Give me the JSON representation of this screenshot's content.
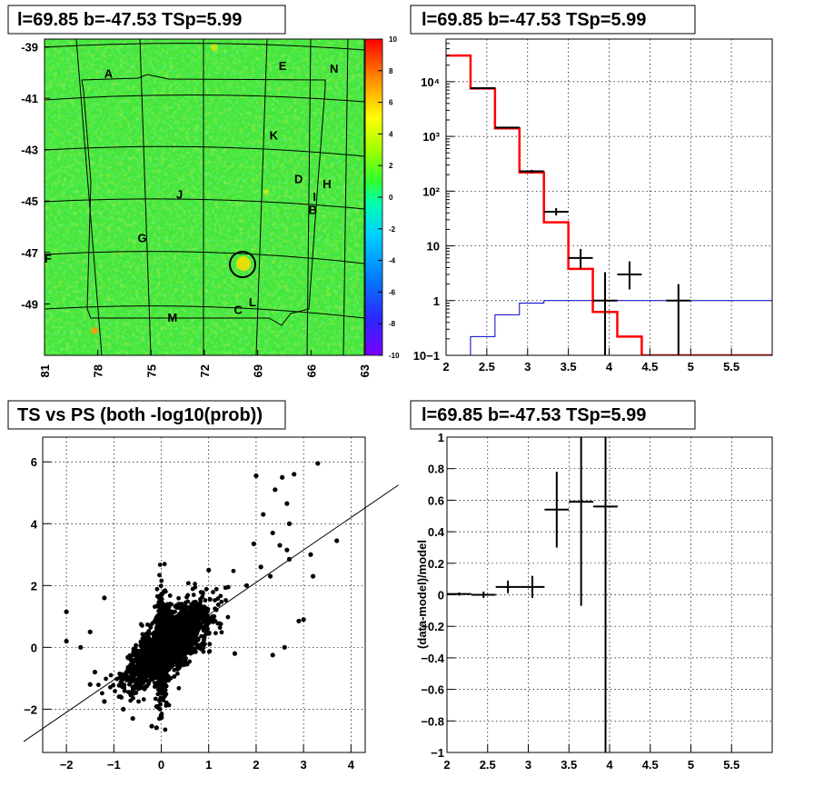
{
  "titles": {
    "map": "l=69.85 b=-47.53 TSp=5.99",
    "spectrum": "l=69.85 b=-47.53 TSp=5.99",
    "scatter": "TS vs PS (both -log10(prob))",
    "residual": "l=69.85 b=-47.53 TSp=5.99"
  },
  "chart_data": [
    {
      "type": "heatmap",
      "title": "l=69.85 b=-47.53 TSp=5.99",
      "x_ticks": [
        "81",
        "78",
        "75",
        "72",
        "69",
        "66",
        "63"
      ],
      "y_ticks": [
        "-39",
        "-41",
        "-43",
        "-45",
        "-47",
        "-49"
      ],
      "xlim": [
        81,
        63
      ],
      "ylim": [
        -51,
        -38.7
      ],
      "colorbar": {
        "min": -10,
        "max": 10,
        "ticks": [
          "10",
          "8",
          "6",
          "4",
          "2",
          "0",
          "-2",
          "-4",
          "-6",
          "-8",
          "-10"
        ]
      },
      "base_level": 0,
      "labels": [
        {
          "text": "A",
          "l": 77.4,
          "b": -40.2
        },
        {
          "text": "E",
          "l": 67.6,
          "b": -39.9
        },
        {
          "text": "N",
          "l": 64.7,
          "b": -40.0
        },
        {
          "text": "K",
          "l": 68.1,
          "b": -42.6
        },
        {
          "text": "D",
          "l": 66.7,
          "b": -44.3
        },
        {
          "text": "H",
          "l": 65.1,
          "b": -44.5
        },
        {
          "text": "J",
          "l": 73.4,
          "b": -44.9
        },
        {
          "text": "I",
          "l": 65.8,
          "b": -45.0
        },
        {
          "text": "B",
          "l": 65.9,
          "b": -45.5
        },
        {
          "text": "G",
          "l": 75.5,
          "b": -46.6
        },
        {
          "text": "F",
          "l": 80.8,
          "b": -47.4
        },
        {
          "text": "L",
          "l": 69.3,
          "b": -49.1
        },
        {
          "text": "C",
          "l": 70.1,
          "b": -49.4
        },
        {
          "text": "M",
          "l": 73.8,
          "b": -49.7
        }
      ],
      "source_circle": {
        "l": 69.85,
        "b": -47.2
      }
    },
    {
      "type": "line",
      "title": "l=69.85 b=-47.53 TSp=5.99",
      "yscale": "log",
      "xlim": [
        2,
        6
      ],
      "ylim": [
        0.1,
        60000
      ],
      "x_ticks": [
        "2",
        "2.5",
        "3",
        "3.5",
        "4",
        "4.5",
        "5",
        "5.5"
      ],
      "y_ticks": [
        "10−1",
        "1",
        "10",
        "10²",
        "10³",
        "10⁴"
      ],
      "model_total": {
        "color": "#ff0000",
        "edges": [
          2,
          2.3,
          2.6,
          2.9,
          3.2,
          3.5,
          3.8,
          4.1,
          4.4,
          6
        ],
        "values": [
          30000,
          7500,
          1400,
          220,
          27,
          3.8,
          0.62,
          0.22,
          0.1
        ]
      },
      "model_background": {
        "color": "#0000cc",
        "edges": [
          2,
          2.3,
          2.6,
          2.9,
          3.2,
          3.5,
          3.8,
          4.1,
          4.4,
          6
        ],
        "values": [
          0.05,
          0.22,
          0.55,
          0.9,
          1.0,
          1.0,
          1.0,
          1.0,
          1.0
        ]
      },
      "data_points": [
        {
          "x": 2.45,
          "y": 7600,
          "xerr": 0.15,
          "ylo": 7400,
          "yhi": 7800
        },
        {
          "x": 2.75,
          "y": 1450,
          "xerr": 0.15,
          "ylo": 1400,
          "yhi": 1500
        },
        {
          "x": 3.05,
          "y": 230,
          "xerr": 0.15,
          "ylo": 215,
          "yhi": 245
        },
        {
          "x": 3.35,
          "y": 42,
          "xerr": 0.15,
          "ylo": 36,
          "yhi": 49
        },
        {
          "x": 3.65,
          "y": 6,
          "xerr": 0.15,
          "ylo": 3.8,
          "yhi": 8.8
        },
        {
          "x": 3.95,
          "y": 1,
          "xerr": 0.15,
          "ylo": 0.1,
          "yhi": 3.3
        },
        {
          "x": 4.25,
          "y": 3,
          "xerr": 0.15,
          "ylo": 1.6,
          "yhi": 5.2
        },
        {
          "x": 4.85,
          "y": 1,
          "xerr": 0.15,
          "ylo": 0.1,
          "yhi": 2.0
        }
      ]
    },
    {
      "type": "scatter",
      "title": "TS vs PS (both -log10(prob))",
      "xlim": [
        -2.5,
        4.3
      ],
      "ylim": [
        -3.4,
        6.8
      ],
      "x_ticks": [
        -2,
        -1,
        0,
        1,
        2,
        3,
        4
      ],
      "y_ticks": [
        -2,
        0,
        2,
        4,
        6
      ],
      "fit_line": {
        "slope": 1.05,
        "intercept": 0.0
      },
      "outliers": [
        [
          3.3,
          5.95
        ],
        [
          2.8,
          5.6
        ],
        [
          2.55,
          5.5
        ],
        [
          2.0,
          5.55
        ],
        [
          2.4,
          5.1
        ],
        [
          2.65,
          4.65
        ],
        [
          2.15,
          4.3
        ],
        [
          2.7,
          4.0
        ],
        [
          3.7,
          3.45
        ],
        [
          3.15,
          3.0
        ],
        [
          3.2,
          2.3
        ],
        [
          2.5,
          3.3
        ],
        [
          2.65,
          3.15
        ],
        [
          2.7,
          2.85
        ],
        [
          2.35,
          3.7
        ],
        [
          1.95,
          3.35
        ],
        [
          -2.0,
          1.15
        ],
        [
          -1.2,
          1.6
        ],
        [
          -1.4,
          -0.8
        ],
        [
          -1.5,
          -1.2
        ],
        [
          -1.2,
          -1.75
        ],
        [
          -0.8,
          -2.0
        ],
        [
          -0.6,
          -2.3
        ],
        [
          -0.2,
          -2.55
        ],
        [
          -0.1,
          -2.6
        ],
        [
          0.0,
          -2.2
        ],
        [
          2.35,
          -0.25
        ],
        [
          2.9,
          0.85
        ],
        [
          3.0,
          0.9
        ],
        [
          2.6,
          0.0
        ],
        [
          1.55,
          -0.2
        ],
        [
          1.0,
          2.5
        ],
        [
          -2.0,
          0.2
        ],
        [
          -1.7,
          0.0
        ],
        [
          -1.5,
          0.5
        ],
        [
          1.8,
          2.0
        ],
        [
          2.1,
          2.6
        ],
        [
          2.3,
          2.3
        ]
      ]
    },
    {
      "type": "scatter",
      "title": "l=69.85 b=-47.53 TSp=5.99",
      "ylabel": "(data-model)/model",
      "xlim": [
        2,
        6
      ],
      "ylim": [
        -1,
        1
      ],
      "x_ticks": [
        "2",
        "2.5",
        "3",
        "3.5",
        "4",
        "4.5",
        "5",
        "5.5"
      ],
      "y_ticks": [
        "−1",
        "−0.8",
        "−0.6",
        "−0.4",
        "−0.2",
        "0",
        "0.2",
        "0.4",
        "0.6",
        "0.8",
        "1"
      ],
      "points": [
        {
          "x": 2.15,
          "y": 0.005,
          "xerr": 0.15,
          "yerr": 0.01
        },
        {
          "x": 2.45,
          "y": 0.0,
          "xerr": 0.15,
          "yerr": 0.02
        },
        {
          "x": 2.75,
          "y": 0.05,
          "xerr": 0.15,
          "yerr": 0.04
        },
        {
          "x": 3.05,
          "y": 0.05,
          "xerr": 0.15,
          "yerr": 0.07
        },
        {
          "x": 3.35,
          "y": 0.54,
          "xerr": 0.15,
          "yerr": 0.24
        },
        {
          "x": 3.65,
          "y": 0.59,
          "xerr": 0.15,
          "ylo": -0.07,
          "yhi": 1.05
        },
        {
          "x": 3.95,
          "y": 0.56,
          "xerr": 0.15,
          "ylo": -1.05,
          "yhi": 1.05
        }
      ]
    }
  ]
}
